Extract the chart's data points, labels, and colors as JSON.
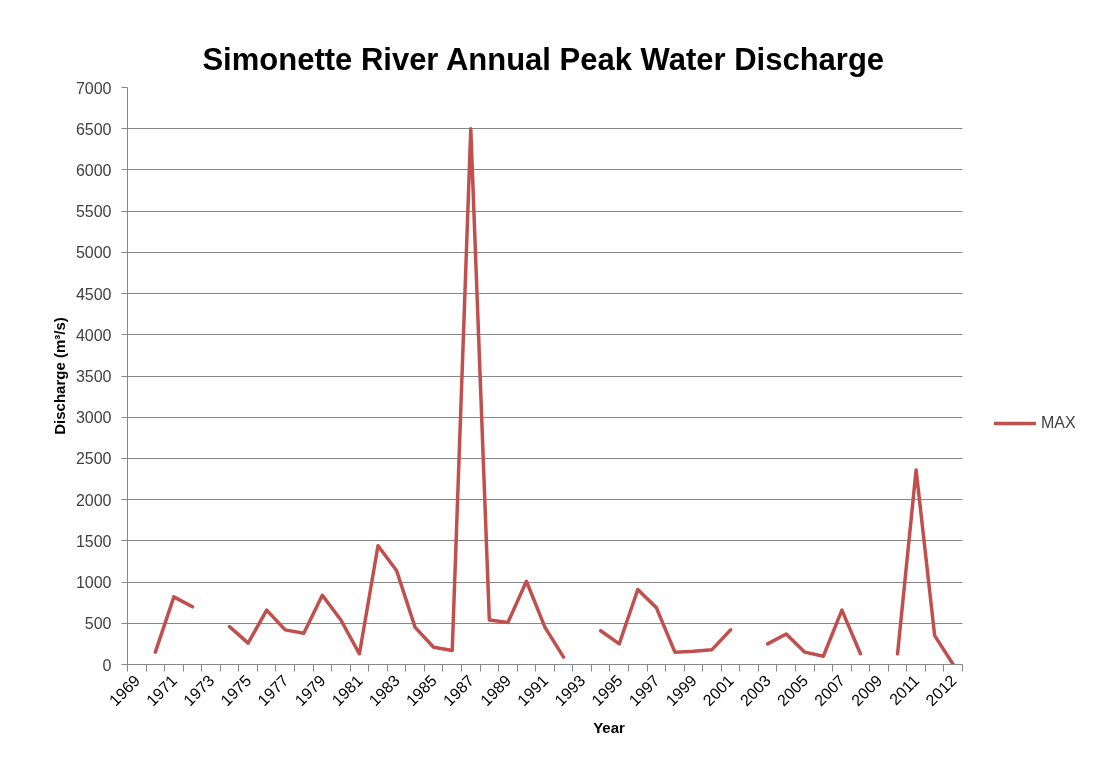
{
  "chart_data": {
    "type": "line",
    "title": "Simonette River Annual Peak Water Discharge",
    "xlabel": "Year",
    "ylabel": "Discharge (m³/s)",
    "categories": [
      "1969",
      null,
      "1971",
      null,
      "1973",
      null,
      "1975",
      null,
      "1977",
      null,
      "1979",
      null,
      "1981",
      null,
      "1983",
      null,
      "1985",
      null,
      "1987",
      null,
      "1989",
      null,
      "1991",
      null,
      "1993",
      null,
      "1995",
      null,
      "1997",
      null,
      "1999",
      null,
      "2001",
      null,
      "2003",
      null,
      "2005",
      null,
      "2007",
      null,
      "2009",
      null,
      "2011",
      null,
      "2012"
    ],
    "series": [
      {
        "name": "MAX",
        "color": "#c0504d",
        "values": [
          null,
          150,
          820,
          700,
          null,
          460,
          260,
          660,
          420,
          380,
          840,
          540,
          130,
          1440,
          1140,
          450,
          210,
          170,
          6500,
          540,
          510,
          1010,
          450,
          90,
          null,
          410,
          250,
          910,
          690,
          150,
          160,
          180,
          420,
          null,
          250,
          370,
          150,
          100,
          660,
          130,
          null,
          130,
          2360,
          350,
          0
        ]
      }
    ],
    "ylim": [
      0,
      7000
    ],
    "yticks": [
      0,
      500,
      1000,
      1500,
      2000,
      2500,
      3000,
      3500,
      4000,
      4500,
      5000,
      5500,
      6000,
      6500,
      7000
    ],
    "grid": "y",
    "legend": "right",
    "line_style": "solid"
  }
}
